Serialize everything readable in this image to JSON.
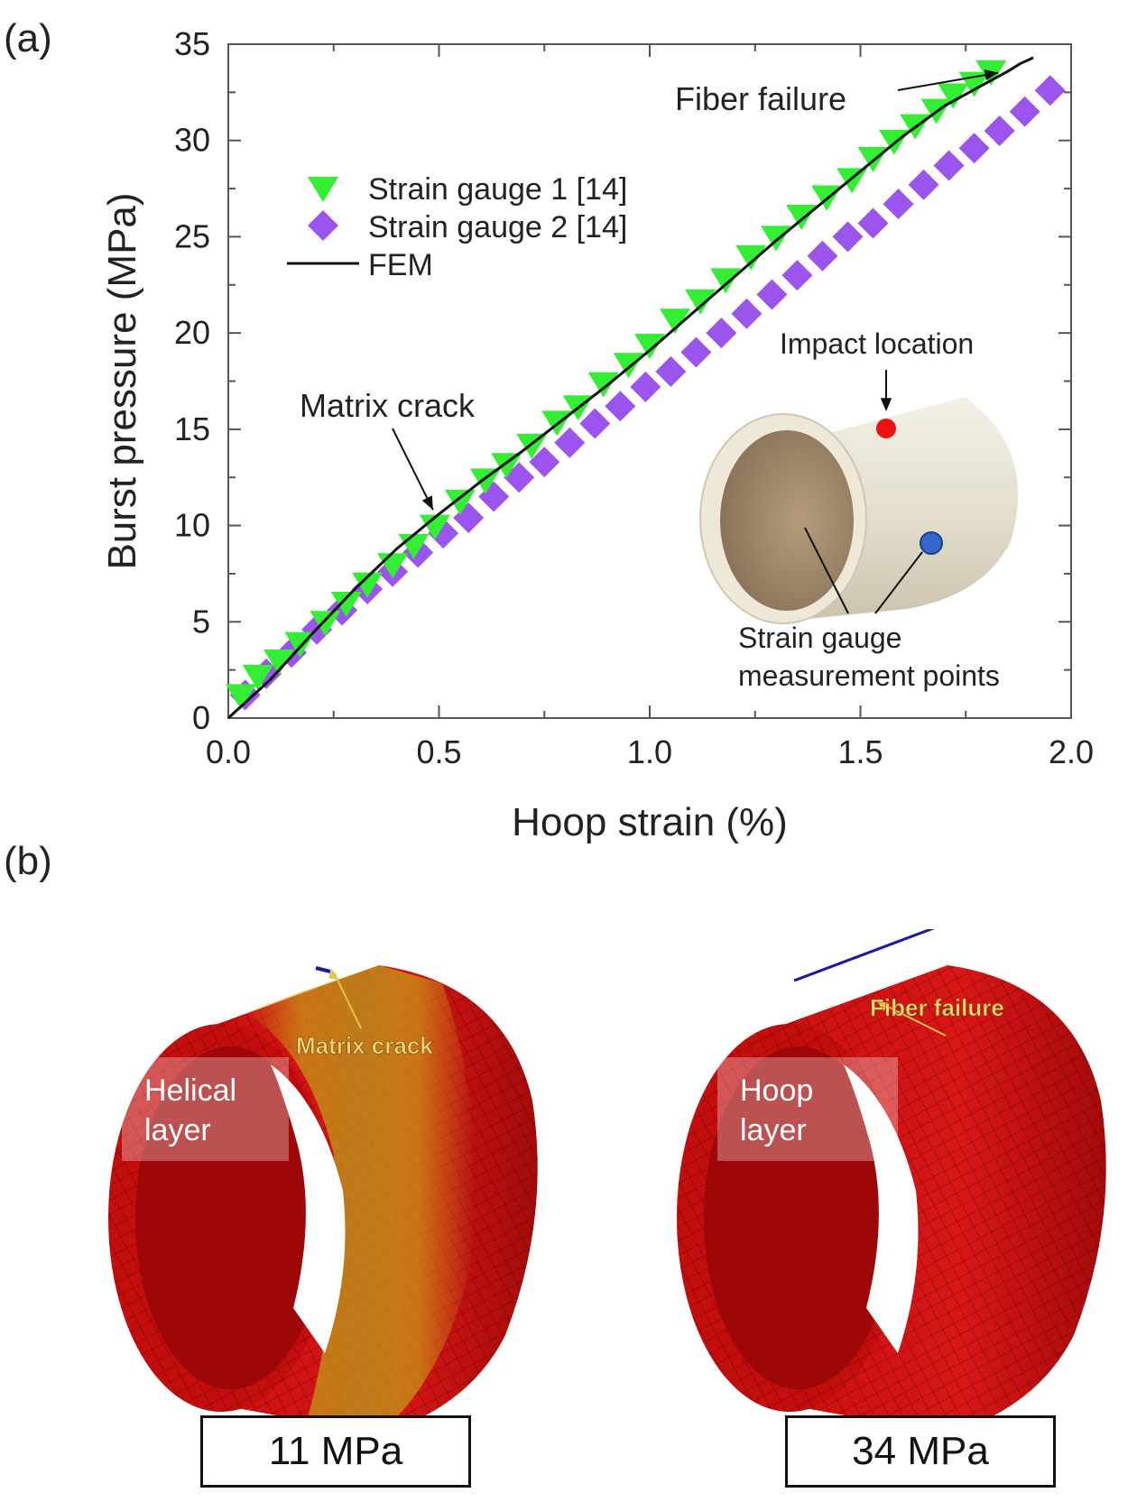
{
  "panel_a_label": "(a)",
  "panel_b_label": "(b)",
  "chart_data": {
    "type": "scatter",
    "xlabel": "Hoop strain (%)",
    "ylabel": "Burst pressure (MPa)",
    "xlim": [
      0,
      2.0
    ],
    "ylim": [
      0,
      35
    ],
    "x_ticks": [
      "0.0",
      "0.5",
      "1.0",
      "1.5",
      "2.0"
    ],
    "y_ticks": [
      "0",
      "5",
      "10",
      "15",
      "20",
      "25",
      "30",
      "35"
    ],
    "legend_position": "top-left",
    "colors": {
      "gauge1": "#33ee33",
      "gauge2": "#9b55ee",
      "fem": "#111111"
    },
    "series": [
      {
        "name": "Strain gauge 1 [14]",
        "marker": "triangle-down",
        "x": [
          0.03,
          0.07,
          0.12,
          0.17,
          0.23,
          0.28,
          0.33,
          0.39,
          0.44,
          0.49,
          0.55,
          0.61,
          0.66,
          0.72,
          0.78,
          0.83,
          0.89,
          0.95,
          1.0,
          1.06,
          1.12,
          1.18,
          1.24,
          1.3,
          1.36,
          1.42,
          1.48,
          1.53,
          1.58,
          1.63,
          1.68,
          1.72,
          1.77,
          1.81
        ],
        "y": [
          1.2,
          2.2,
          3.0,
          3.9,
          5.0,
          6.0,
          7.0,
          8.0,
          9.0,
          10.0,
          11.3,
          12.4,
          13.2,
          14.2,
          15.4,
          16.2,
          17.4,
          18.4,
          19.4,
          20.7,
          21.7,
          22.8,
          24.0,
          25.0,
          26.1,
          27.1,
          28.0,
          29.1,
          30.0,
          30.8,
          31.6,
          32.4,
          33.0,
          33.6
        ]
      },
      {
        "name": "Strain gauge 2 [14]",
        "marker": "diamond",
        "x": [
          0.04,
          0.09,
          0.15,
          0.21,
          0.27,
          0.33,
          0.39,
          0.45,
          0.51,
          0.57,
          0.63,
          0.69,
          0.75,
          0.81,
          0.87,
          0.93,
          0.99,
          1.05,
          1.11,
          1.17,
          1.23,
          1.29,
          1.35,
          1.41,
          1.47,
          1.53,
          1.59,
          1.65,
          1.71,
          1.77,
          1.83,
          1.89,
          1.95
        ],
        "y": [
          1.2,
          2.3,
          3.4,
          4.6,
          5.6,
          6.7,
          7.6,
          8.6,
          9.6,
          10.4,
          11.5,
          12.5,
          13.3,
          14.3,
          15.3,
          16.2,
          17.2,
          18.0,
          19.0,
          20.0,
          21.0,
          22.0,
          23.0,
          24.0,
          25.0,
          25.7,
          26.7,
          27.7,
          28.7,
          29.6,
          30.5,
          31.5,
          32.6
        ]
      },
      {
        "name": "FEM",
        "marker": "line",
        "x": [
          0.0,
          0.1,
          0.2,
          0.3,
          0.4,
          0.5,
          0.6,
          0.7,
          0.8,
          0.9,
          1.0,
          1.1,
          1.2,
          1.3,
          1.4,
          1.5,
          1.6,
          1.7,
          1.8,
          1.85,
          1.88,
          1.9,
          1.91
        ],
        "y": [
          0.0,
          2.0,
          4.4,
          6.7,
          8.8,
          10.6,
          12.3,
          13.9,
          15.6,
          17.3,
          19.1,
          21.0,
          22.9,
          24.8,
          26.6,
          28.4,
          30.2,
          31.8,
          33.0,
          33.6,
          34.0,
          34.2,
          34.3
        ]
      }
    ],
    "annotations": [
      {
        "id": "fiber_failure",
        "text": "Fiber failure",
        "x": 1.84,
        "y": 33.8
      },
      {
        "id": "matrix_crack",
        "text": "Matrix crack",
        "x": 0.49,
        "y": 11.0
      }
    ],
    "inset": {
      "impact_label": "Impact location",
      "gauge_label_line1": "Strain gauge",
      "gauge_label_line2": "measurement points"
    }
  },
  "panel_b": {
    "left": {
      "layer_line1": "Helical",
      "layer_line2": "layer",
      "callout": "Matrix crack",
      "pressure": "11 MPa"
    },
    "right": {
      "layer_line1": "Hoop",
      "layer_line2": "layer",
      "callout": "Fiber failure",
      "pressure": "34 MPa"
    }
  }
}
